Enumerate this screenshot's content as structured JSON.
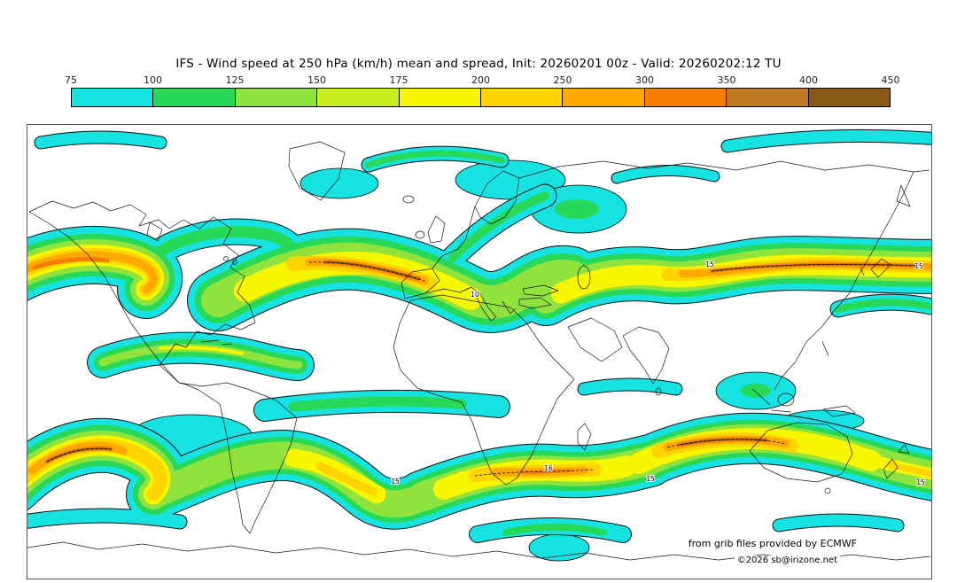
{
  "header": {
    "title": "IFS - Wind speed at 250 hPa (km/h) mean and spread, Init: 20260201 00z - Valid: 20260202:12 TU"
  },
  "colorbar": {
    "ticks": [
      "75",
      "100",
      "125",
      "150",
      "175",
      "200",
      "250",
      "300",
      "350",
      "400",
      "450"
    ],
    "colors": [
      "#17e2e2",
      "#27d957",
      "#90e23c",
      "#c9ee22",
      "#f6f600",
      "#ffd400",
      "#ffa800",
      "#f57d00",
      "#c07a22",
      "#8a5a14"
    ]
  },
  "map": {
    "contour_labels": [
      "15",
      "15",
      "10",
      "16",
      "15",
      "15",
      "15"
    ]
  },
  "credits": {
    "source": "from grib files provided by ECMWF",
    "copyright": "©2026 sb@irizone.net"
  },
  "chart_data": {
    "type": "heatmap",
    "title": "IFS - Wind speed at 250 hPa (km/h) mean and spread, Init: 20260201 00z - Valid: 20260202:12 TU",
    "model": "IFS",
    "variable": "Wind speed at 250 hPa",
    "statistic": "mean and spread",
    "units": "km/h",
    "init_time": "20260201 00z",
    "valid_time": "20260202:12 TU",
    "projection": "global equirectangular world map",
    "colorbar": {
      "ticks": [
        75,
        100,
        125,
        150,
        175,
        200,
        250,
        300,
        350,
        400,
        450
      ],
      "colors": [
        "#17e2e2",
        "#27d957",
        "#90e23c",
        "#c9ee22",
        "#f6f600",
        "#ffd400",
        "#ffa800",
        "#f57d00",
        "#c07a22",
        "#8a5a14"
      ]
    },
    "features": [
      {
        "name": "north-pacific-jet",
        "region": "far-west Pacific near map edge, ~40N",
        "peak_kmh": 380
      },
      {
        "name": "north-america-atlantic-jet",
        "region": "eastern North America into the Atlantic, ~40N",
        "peak_kmh": 380
      },
      {
        "name": "asia-pacific-jet",
        "region": "Middle East across Asia to the NW Pacific, ~35N",
        "peak_kmh": 400
      },
      {
        "name": "subtropical-band-mexico",
        "region": "Mexico / Caribbean, ~25N",
        "peak_kmh": 160
      },
      {
        "name": "southern-ocean-jet-west",
        "region": "SE Pacific west of South America, ~50S",
        "peak_kmh": 400
      },
      {
        "name": "south-atlantic-indian-jet",
        "region": "south of Africa, ~45S",
        "peak_kmh": 330
      },
      {
        "name": "southern-indian-australia-jet",
        "region": "Indian Ocean toward Australia, ~45S",
        "peak_kmh": 380
      },
      {
        "name": "polar-and-tropical-patches",
        "region": "Arctic fringe, equatorial Atlantic, Indonesia, Antarctic coast",
        "peak_kmh": 120
      }
    ],
    "spread_contour_labels": [
      10,
      15,
      16
    ]
  }
}
